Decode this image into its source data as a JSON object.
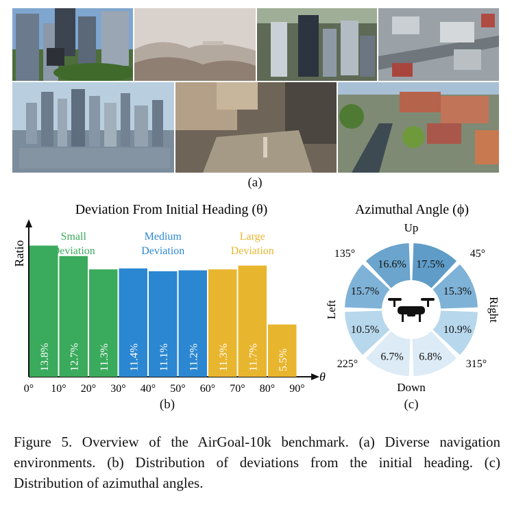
{
  "figure": {
    "label_a": "(a)",
    "label_b": "(b)",
    "label_c": "(c)",
    "caption": "Figure 5.  Overview of the AirGoal-10k benchmark.  (a) Diverse navigation environments.  (b) Distribution of deviations from the initial heading.  (c) Distribution of azimuthal angles."
  },
  "photos": [
    {
      "name": "city-skyscrapers-park"
    },
    {
      "name": "foggy-mountain-valley"
    },
    {
      "name": "aerial-downtown-towers"
    },
    {
      "name": "aerial-highway-district"
    },
    {
      "name": "city-skyline-haze"
    },
    {
      "name": "plaza-courtyard"
    },
    {
      "name": "european-town-trees"
    }
  ],
  "chart_data": [
    {
      "type": "bar",
      "title": "Deviation From Initial Heading (θ)",
      "ylabel": "Ratio",
      "xlabel": "θ",
      "x_ticks": [
        "0°",
        "10°",
        "20°",
        "30°",
        "40°",
        "50°",
        "60°",
        "70°",
        "80°",
        "90°"
      ],
      "categories": [
        "0–10°",
        "10–20°",
        "20–30°",
        "30–40°",
        "40–50°",
        "50–60°",
        "60–70°",
        "70–80°",
        "80–90°"
      ],
      "values": [
        13.8,
        12.7,
        11.3,
        11.4,
        11.1,
        11.2,
        11.3,
        11.7,
        5.5
      ],
      "value_labels": [
        "13.8%",
        "12.7%",
        "11.3%",
        "11.4%",
        "11.1%",
        "11.2%",
        "11.3%",
        "11.7%",
        "5.5%"
      ],
      "groups": [
        {
          "name": "Small Deviation",
          "line1": "Small",
          "line2": "Deviation",
          "color": "#3aaa5c",
          "bars": [
            0,
            1,
            2
          ]
        },
        {
          "name": "Medium Deviation",
          "line1": "Medium",
          "line2": "Deviation",
          "color": "#2b87d1",
          "bars": [
            3,
            4,
            5
          ]
        },
        {
          "name": "Large Deviation",
          "line1": "Large",
          "line2": "Deviation",
          "color": "#e8b52e",
          "bars": [
            6,
            7,
            8
          ]
        }
      ],
      "ylim": [
        0,
        16
      ],
      "grid": false
    },
    {
      "type": "pie",
      "title": "Azimuthal Angle (ϕ)",
      "sectors": [
        {
          "label": "16.6%",
          "value": 16.6,
          "color": "#6ba4cc"
        },
        {
          "label": "15.7%",
          "value": 15.7,
          "color": "#7fb2d7"
        },
        {
          "label": "10.5%",
          "value": 10.5,
          "color": "#b7d7ec"
        },
        {
          "label": "6.7%",
          "value": 6.7,
          "color": "#dcebf6"
        },
        {
          "label": "6.8%",
          "value": 6.8,
          "color": "#dcebf6"
        },
        {
          "label": "10.9%",
          "value": 10.9,
          "color": "#b7d7ec"
        },
        {
          "label": "15.3%",
          "value": 15.3,
          "color": "#7fb2d7"
        },
        {
          "label": "17.5%",
          "value": 17.5,
          "color": "#5f9cc8"
        }
      ],
      "direction_labels": {
        "up": "Up",
        "down": "Down",
        "left": "Left",
        "right": "Right"
      },
      "angle_labels": {
        "a45": "45°",
        "a135": "135°",
        "a225": "225°",
        "a315": "315°"
      },
      "center_icon": "drone-icon"
    }
  ]
}
